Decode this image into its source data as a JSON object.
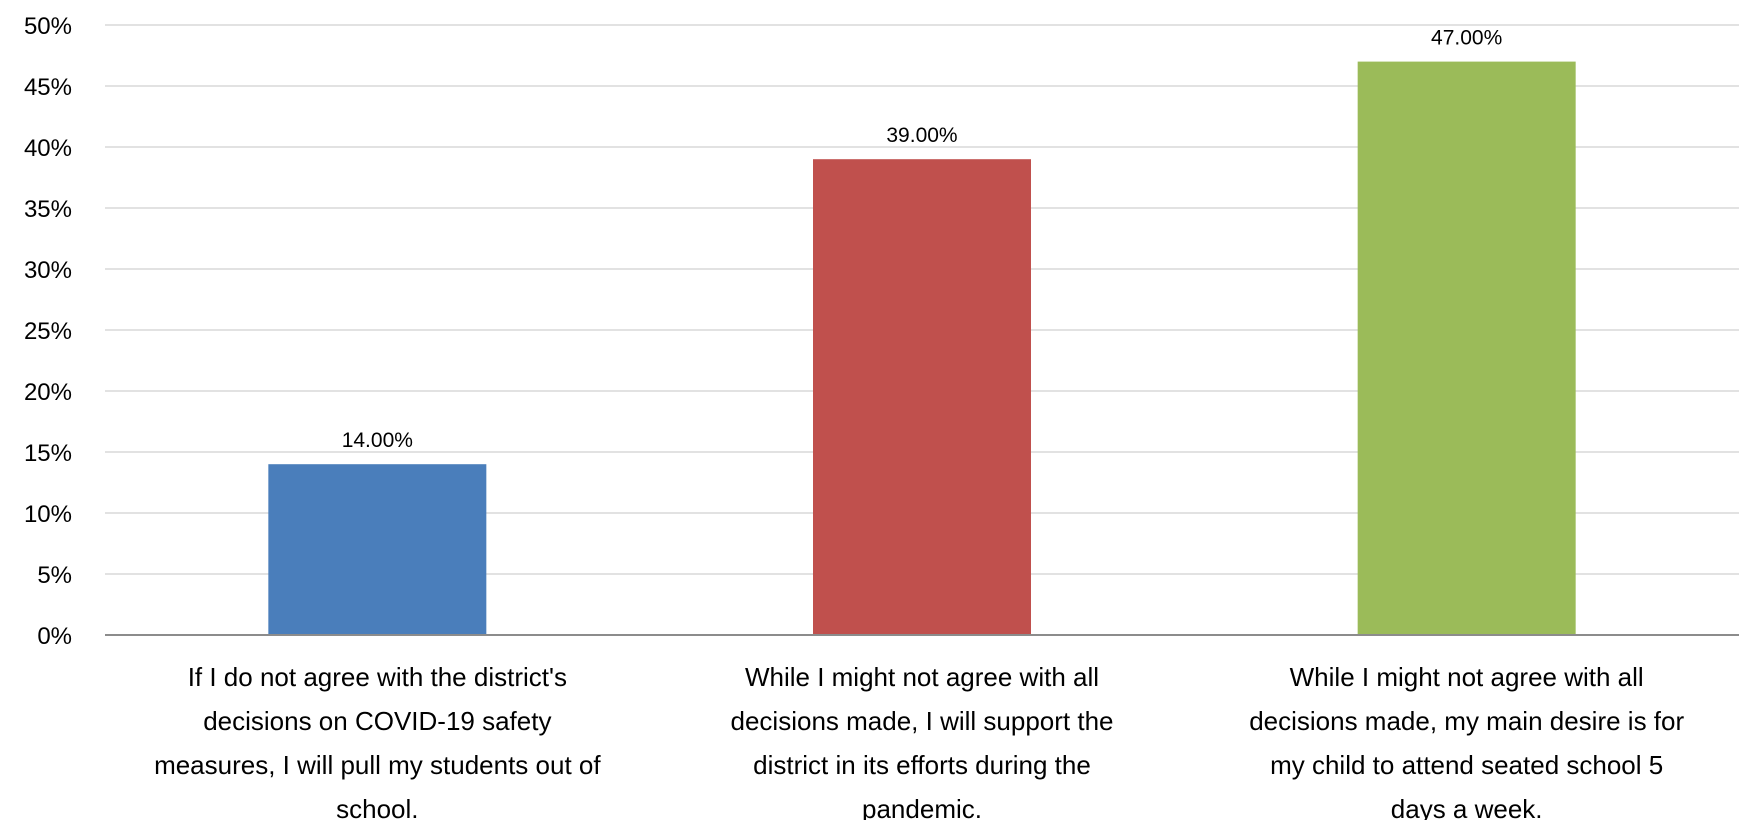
{
  "chart_data": {
    "type": "bar",
    "categories": [
      "If I do not agree with the district's decisions on COVID-19 safety measures, I will pull my students out of school.",
      "While I might not agree with all decisions made, I will support the district in its efforts during the pandemic.",
      "While I might not agree with all decisions made, my main desire is for my child to attend seated school 5 days a week."
    ],
    "category_lines": [
      [
        "If I do not agree with the district's",
        "decisions on COVID-19 safety",
        "measures, I will pull my students out of",
        "school."
      ],
      [
        "While I might not agree with all",
        "decisions made, I will support the",
        "district in its efforts during the",
        "pandemic."
      ],
      [
        "While I might not agree with all",
        "decisions made, my main desire is for",
        "my child to attend seated school 5",
        "days a week."
      ]
    ],
    "values": [
      14,
      39,
      47
    ],
    "data_labels": [
      "14.00%",
      "39.00%",
      "47.00%"
    ],
    "colors": [
      "#4a7ebb",
      "#c0504d",
      "#9bbb59"
    ],
    "ylim": [
      0,
      50
    ],
    "yticks": [
      0,
      5,
      10,
      15,
      20,
      25,
      30,
      35,
      40,
      45,
      50
    ],
    "ytick_labels": [
      "0%",
      "5%",
      "10%",
      "15%",
      "20%",
      "25%",
      "30%",
      "35%",
      "40%",
      "45%",
      "50%"
    ],
    "grid": true,
    "legend": false,
    "title": "",
    "xlabel": "",
    "ylabel": ""
  }
}
